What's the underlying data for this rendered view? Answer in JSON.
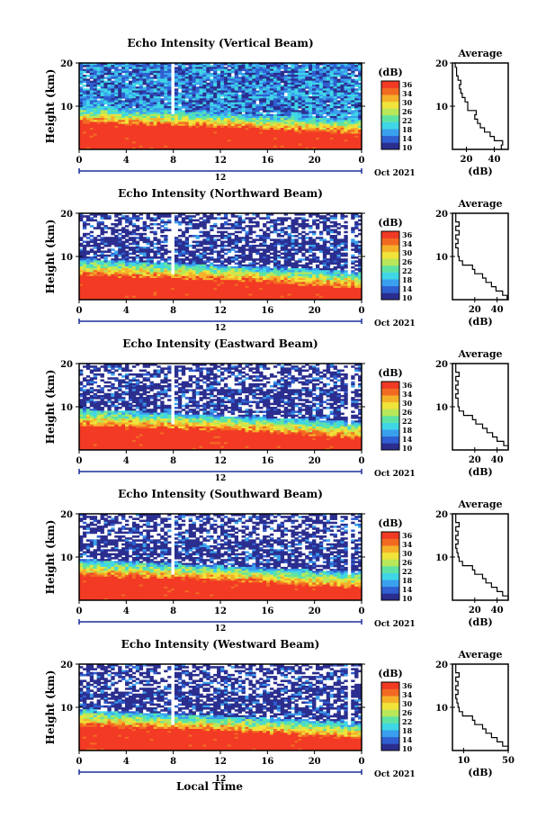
{
  "figure": {
    "xlabel": "Local Time",
    "date_label": "Oct 2021",
    "ylabel": "Height (km)",
    "colorbar_unit": "(dB)",
    "colorbar_ticks": [
      "36",
      "34",
      "30",
      "26",
      "22",
      "18",
      "14",
      "10"
    ],
    "avg_title": "Average",
    "avg_xlabel": "(dB)",
    "x_ticks": [
      "0",
      "4",
      "8",
      "12",
      "16",
      "20",
      "0"
    ],
    "date_mid_tick": "12",
    "y_ticks": [
      "20",
      "10"
    ]
  },
  "colors": {
    "scale": [
      "#2b2e8f",
      "#2f5fd0",
      "#3aa0ee",
      "#3fd6e6",
      "#5fe3a3",
      "#b8e85a",
      "#f0e33a",
      "#f5b02a",
      "#f26a22",
      "#f03a24"
    ],
    "strong": "#f23a24"
  },
  "chart_data": [
    {
      "type": "heatmap",
      "title": "Echo Intensity (Vertical Beam)",
      "x_range": [
        0,
        24
      ],
      "y_range": [
        0,
        20
      ],
      "c_range": [
        10,
        36
      ],
      "avg_ticks": [
        "20",
        "40"
      ],
      "avg_range": [
        10,
        50
      ],
      "lower_layer_top_km": [
        6.0,
        5.0,
        3.5
      ],
      "upper_layer_top_km": [
        10.0,
        8.5,
        7.0
      ],
      "average_profile": [
        [
          45,
          1
        ],
        [
          46,
          2
        ],
        [
          40,
          3
        ],
        [
          37,
          4
        ],
        [
          33,
          5
        ],
        [
          30,
          6
        ],
        [
          28,
          7
        ],
        [
          26,
          8
        ],
        [
          27,
          9
        ],
        [
          21,
          10
        ],
        [
          21,
          11
        ],
        [
          19,
          12
        ],
        [
          17,
          13
        ],
        [
          16,
          14
        ],
        [
          15,
          15
        ],
        [
          16,
          16
        ],
        [
          14,
          17
        ],
        [
          13,
          18
        ],
        [
          13,
          19
        ],
        [
          12,
          20
        ]
      ]
    },
    {
      "type": "heatmap",
      "title": "Echo Intensity (Northward Beam)",
      "x_range": [
        0,
        24
      ],
      "y_range": [
        0,
        20
      ],
      "c_range": [
        10,
        36
      ],
      "avg_ticks": [
        "20",
        "40"
      ],
      "avg_range": [
        0,
        50
      ],
      "lower_layer_top_km": [
        5.5,
        4.5,
        2.5
      ],
      "upper_layer_top_km": [
        9.5,
        8.0,
        6.5
      ],
      "average_profile": [
        [
          49,
          1
        ],
        [
          45,
          2
        ],
        [
          39,
          3
        ],
        [
          35,
          4
        ],
        [
          30,
          5
        ],
        [
          27,
          6
        ],
        [
          20,
          7
        ],
        [
          18,
          8
        ],
        [
          9,
          9
        ],
        [
          6,
          10
        ],
        [
          5,
          11
        ],
        [
          5,
          12
        ],
        [
          3,
          13
        ],
        [
          5,
          14
        ],
        [
          3,
          15
        ],
        [
          6,
          16
        ],
        [
          3,
          17
        ],
        [
          6,
          18
        ],
        [
          3,
          19
        ],
        [
          3,
          20
        ]
      ]
    },
    {
      "type": "heatmap",
      "title": "Echo Intensity (Eastward Beam)",
      "x_range": [
        0,
        24
      ],
      "y_range": [
        0,
        20
      ],
      "c_range": [
        10,
        36
      ],
      "avg_ticks": [
        "20",
        "40"
      ],
      "avg_range": [
        0,
        50
      ],
      "lower_layer_top_km": [
        5.5,
        4.5,
        2.5
      ],
      "upper_layer_top_km": [
        9.5,
        8.0,
        6.5
      ],
      "average_profile": [
        [
          50,
          1
        ],
        [
          46,
          2
        ],
        [
          40,
          3
        ],
        [
          36,
          4
        ],
        [
          31,
          5
        ],
        [
          27,
          6
        ],
        [
          21,
          7
        ],
        [
          18,
          8
        ],
        [
          10,
          9
        ],
        [
          6,
          10
        ],
        [
          5,
          11
        ],
        [
          5,
          12
        ],
        [
          3,
          13
        ],
        [
          5,
          14
        ],
        [
          3,
          15
        ],
        [
          5,
          16
        ],
        [
          3,
          17
        ],
        [
          6,
          18
        ],
        [
          3,
          19
        ],
        [
          3,
          20
        ]
      ]
    },
    {
      "type": "heatmap",
      "title": "Echo Intensity (Southward Beam)",
      "x_range": [
        0,
        24
      ],
      "y_range": [
        0,
        20
      ],
      "c_range": [
        10,
        36
      ],
      "avg_ticks": [
        "20",
        "40"
      ],
      "avg_range": [
        0,
        50
      ],
      "lower_layer_top_km": [
        5.5,
        4.5,
        2.5
      ],
      "upper_layer_top_km": [
        9.5,
        8.0,
        6.5
      ],
      "average_profile": [
        [
          50,
          1
        ],
        [
          45,
          2
        ],
        [
          40,
          3
        ],
        [
          35,
          4
        ],
        [
          30,
          5
        ],
        [
          27,
          6
        ],
        [
          20,
          7
        ],
        [
          18,
          8
        ],
        [
          9,
          9
        ],
        [
          6,
          10
        ],
        [
          5,
          11
        ],
        [
          4,
          12
        ],
        [
          3,
          13
        ],
        [
          5,
          14
        ],
        [
          3,
          15
        ],
        [
          5,
          16
        ],
        [
          3,
          17
        ],
        [
          6,
          18
        ],
        [
          3,
          19
        ],
        [
          3,
          20
        ]
      ]
    },
    {
      "type": "heatmap",
      "title": "Echo Intensity (Westward Beam)",
      "x_range": [
        0,
        24
      ],
      "y_range": [
        0,
        20
      ],
      "c_range": [
        10,
        36
      ],
      "avg_ticks": [
        "10",
        "50"
      ],
      "avg_range": [
        0,
        50
      ],
      "lower_layer_top_km": [
        5.5,
        4.5,
        2.5
      ],
      "upper_layer_top_km": [
        9.5,
        8.0,
        6.5
      ],
      "average_profile": [
        [
          50,
          1
        ],
        [
          45,
          2
        ],
        [
          40,
          3
        ],
        [
          35,
          4
        ],
        [
          30,
          5
        ],
        [
          27,
          6
        ],
        [
          20,
          7
        ],
        [
          18,
          8
        ],
        [
          9,
          9
        ],
        [
          6,
          10
        ],
        [
          5,
          11
        ],
        [
          4,
          12
        ],
        [
          3,
          13
        ],
        [
          5,
          14
        ],
        [
          3,
          15
        ],
        [
          5,
          16
        ],
        [
          3,
          17
        ],
        [
          6,
          18
        ],
        [
          3,
          19
        ],
        [
          3,
          20
        ]
      ]
    }
  ]
}
